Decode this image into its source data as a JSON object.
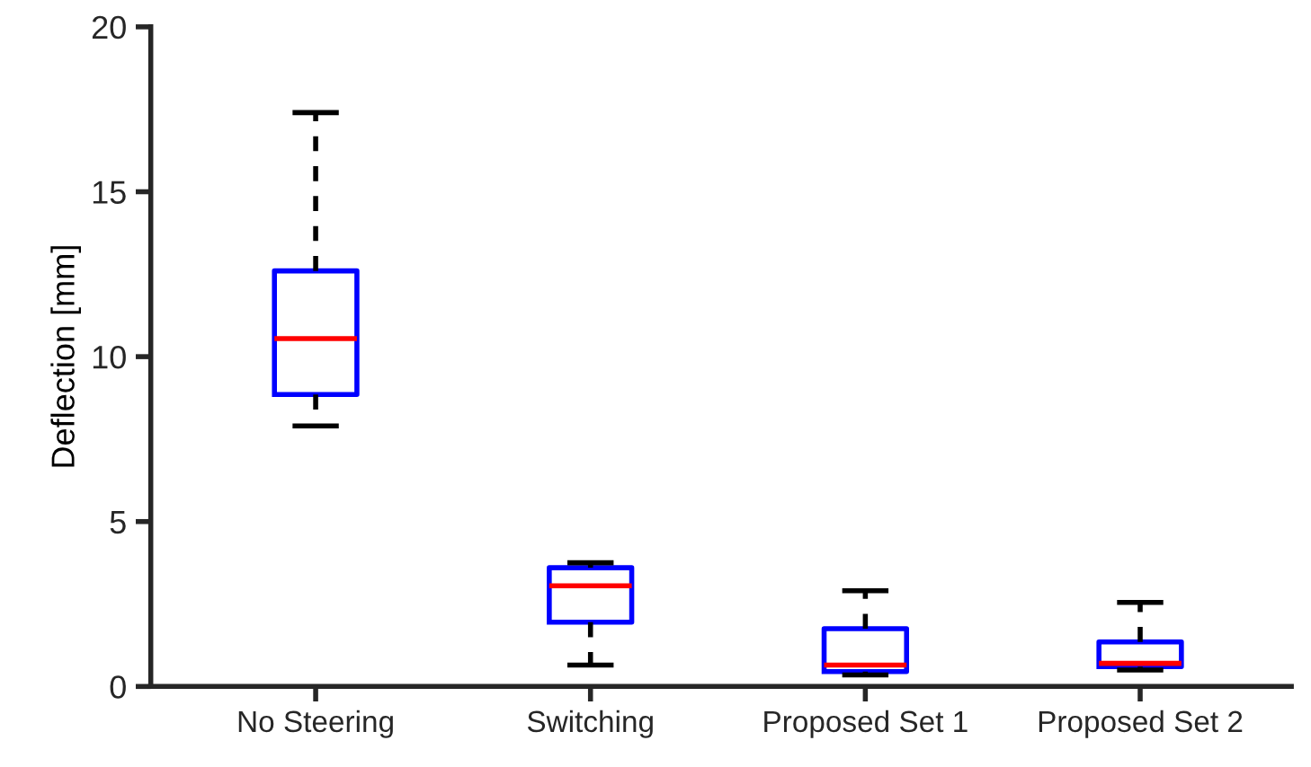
{
  "chart_data": {
    "type": "box",
    "ylabel": "Deflection [mm]",
    "categories": [
      "No Steering",
      "Switching",
      "Proposed Set 1",
      "Proposed Set 2"
    ],
    "boxes": [
      {
        "low": 7.9,
        "q1": 8.85,
        "median": 10.55,
        "q3": 12.6,
        "high": 17.4
      },
      {
        "low": 0.65,
        "q1": 1.95,
        "median": 3.05,
        "q3": 3.6,
        "high": 3.75
      },
      {
        "low": 0.35,
        "q1": 0.45,
        "median": 0.65,
        "q3": 1.75,
        "high": 2.9
      },
      {
        "low": 0.5,
        "q1": 0.6,
        "median": 0.7,
        "q3": 1.35,
        "high": 2.55
      }
    ],
    "color": "#0000ff",
    "ylim": [
      0,
      20
    ],
    "yticks": [
      0,
      5,
      10,
      15,
      20
    ],
    "grid": false,
    "line_style": "dashed"
  }
}
